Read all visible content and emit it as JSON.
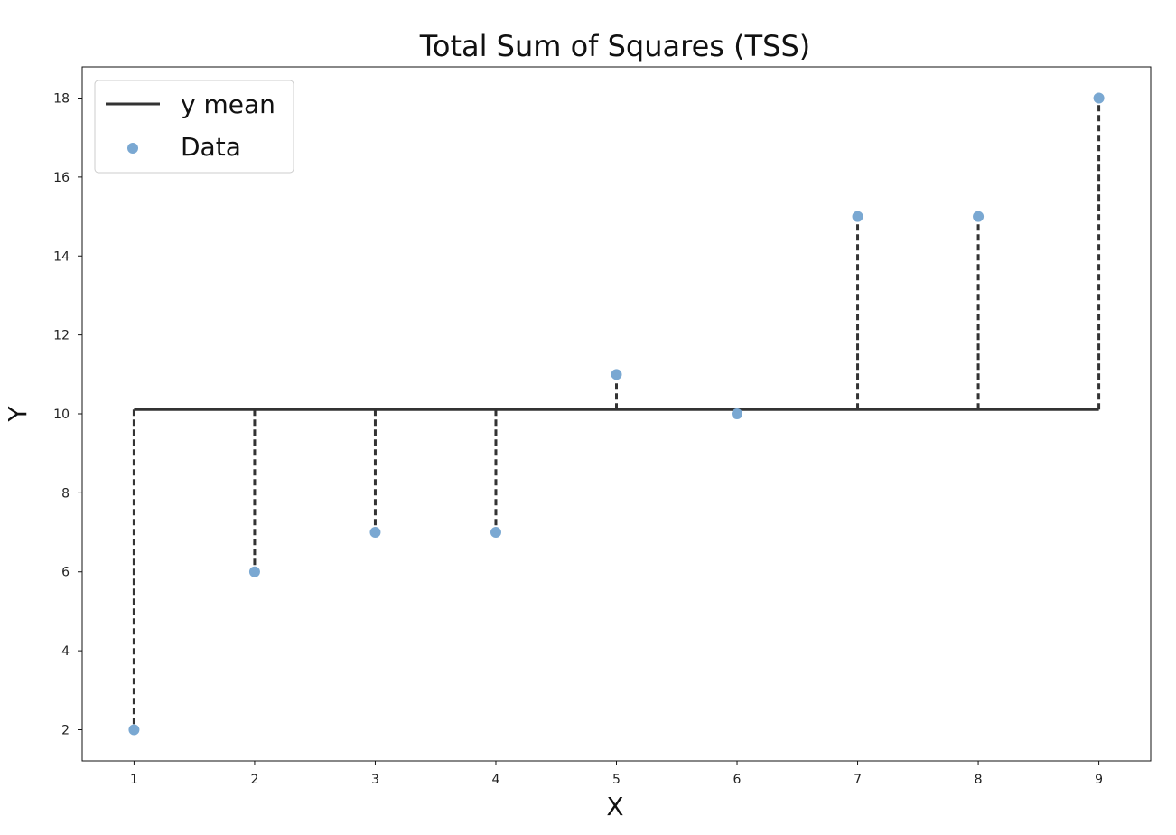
{
  "chart_data": {
    "type": "scatter",
    "title": "Total Sum of Squares (TSS)",
    "xlabel": "X",
    "ylabel": "Y",
    "x": [
      1,
      2,
      3,
      4,
      5,
      6,
      7,
      8,
      9
    ],
    "series": [
      {
        "name": "Data",
        "kind": "scatter",
        "x": [
          1,
          2,
          3,
          4,
          5,
          6,
          7,
          8,
          9
        ],
        "y": [
          2,
          6,
          7,
          7,
          11,
          10,
          15,
          15,
          18
        ],
        "color": "#7aa8d2"
      },
      {
        "name": "y mean",
        "kind": "line",
        "x": [
          1,
          9
        ],
        "y": [
          10.11,
          10.11
        ],
        "color": "#333333"
      }
    ],
    "y_mean": 10.11,
    "residual_lines": {
      "style": "dashed",
      "color": "#333333"
    },
    "xlim": [
      0.57,
      9.43
    ],
    "ylim": [
      1.21,
      18.79
    ],
    "xticks": [
      1,
      2,
      3,
      4,
      5,
      6,
      7,
      8,
      9
    ],
    "yticks": [
      2,
      4,
      6,
      8,
      10,
      12,
      14,
      16,
      18
    ],
    "legend": {
      "position": "upper-left",
      "entries": [
        "y mean",
        "Data"
      ]
    },
    "grid": false
  }
}
